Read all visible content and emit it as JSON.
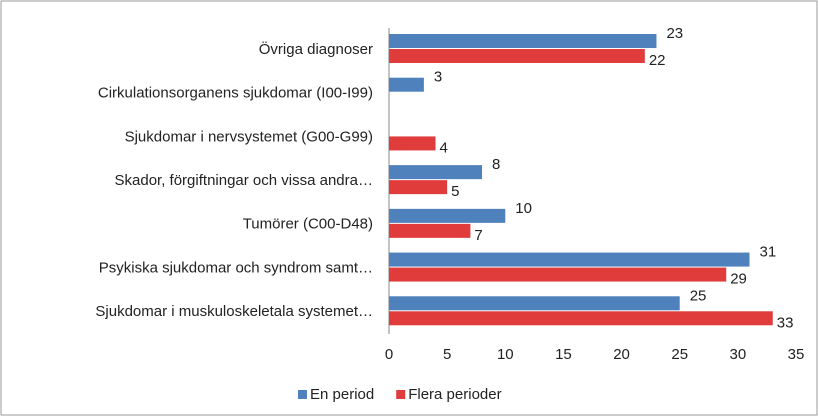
{
  "chart_data": {
    "type": "hbar",
    "categories": [
      "Övriga diagnoser",
      "Cirkulationsorganens sjukdomar (I00-I99)",
      "Sjukdomar i nervsystemet (G00-G99)",
      "Skador, förgiftningar och vissa andra…",
      "Tumörer (C00-D48)",
      "Psykiska sjukdomar och syndrom samt…",
      "Sjukdomar i muskuloskeletala systemet…"
    ],
    "series": [
      {
        "name": "En period",
        "color": "#4f81bd",
        "values": [
          23,
          3,
          null,
          8,
          10,
          31,
          25
        ]
      },
      {
        "name": "Flera perioder",
        "color": "#e03c3c",
        "values": [
          22,
          null,
          4,
          5,
          7,
          29,
          33
        ]
      }
    ],
    "xlim": [
      0,
      35
    ],
    "xticks": [
      0,
      5,
      10,
      15,
      20,
      25,
      30,
      35
    ],
    "grid": false,
    "legend": "bottom"
  }
}
